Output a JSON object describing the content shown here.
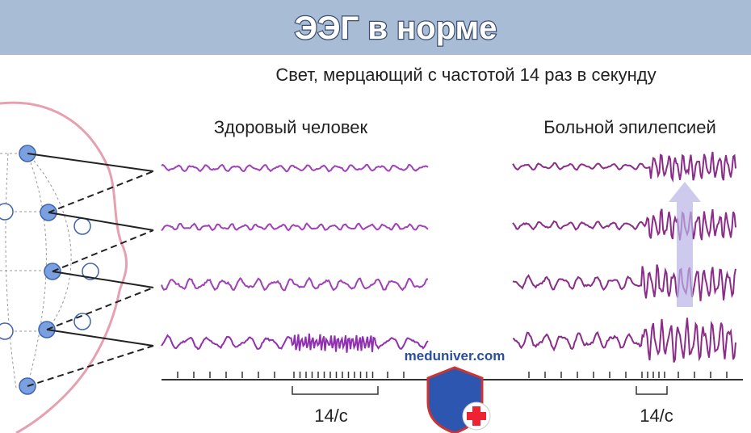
{
  "header": {
    "title": "ЭЭГ в норме"
  },
  "subtitle": "Свет, мерцающий с частотой 14 раз в секунду",
  "panels": [
    {
      "label": "Здоровый человек",
      "rate": "14/с"
    },
    {
      "label": "Больной эпилепсией",
      "rate": "14/с"
    }
  ],
  "watermark": "meduniver.com"
}
